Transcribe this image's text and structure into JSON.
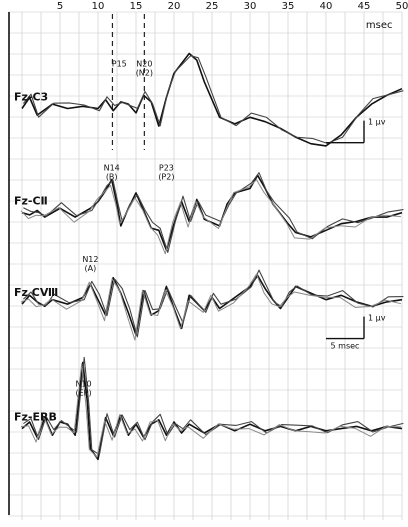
{
  "chart_data": {
    "type": "line",
    "title": "",
    "xlabel": "msec",
    "ylabel": "",
    "xlim": [
      0,
      50
    ],
    "x_ticks": [
      5,
      10,
      15,
      20,
      25,
      30,
      35,
      40,
      45,
      50
    ],
    "grid": true,
    "dashed_markers_ms": [
      11.9,
      16.1
    ],
    "traces": [
      {
        "name": "Fz-C3",
        "series_count": 2,
        "baseline": 0.19,
        "points_ms": [
          [
            0,
            0
          ],
          [
            1,
            0.5
          ],
          [
            2,
            -0.3
          ],
          [
            4,
            0.2
          ],
          [
            6,
            0
          ],
          [
            8,
            0.1
          ],
          [
            10,
            0
          ],
          [
            11,
            0.4
          ],
          [
            12,
            -0.1
          ],
          [
            13,
            0.3
          ],
          [
            14,
            0.2
          ],
          [
            15,
            -0.2
          ],
          [
            16,
            0.6
          ],
          [
            17,
            0.3
          ],
          [
            18,
            -0.8
          ],
          [
            19,
            0.5
          ],
          [
            20,
            1.6
          ],
          [
            22,
            2.5
          ],
          [
            23,
            2.2
          ],
          [
            24,
            1.2
          ],
          [
            26,
            -0.4
          ],
          [
            28,
            -0.7
          ],
          [
            30,
            -0.4
          ],
          [
            32,
            -0.6
          ],
          [
            34,
            -0.9
          ],
          [
            36,
            -1.3
          ],
          [
            38,
            -1.6
          ],
          [
            40,
            -1.7
          ],
          [
            42,
            -1.2
          ],
          [
            44,
            -0.4
          ],
          [
            46,
            0.2
          ],
          [
            48,
            0.6
          ],
          [
            50,
            0.9
          ]
        ]
      },
      {
        "name": "Fz-CⅡ",
        "series_count": 3,
        "baseline": 0.395,
        "points_ms": [
          [
            0,
            0
          ],
          [
            1,
            -0.1
          ],
          [
            2,
            0.1
          ],
          [
            3,
            -0.2
          ],
          [
            5,
            0.2
          ],
          [
            7,
            -0.2
          ],
          [
            9,
            0.2
          ],
          [
            10,
            0.5
          ],
          [
            11,
            1.0
          ],
          [
            11.8,
            1.5
          ],
          [
            12.5,
            0.4
          ],
          [
            13,
            -0.6
          ],
          [
            14,
            0.2
          ],
          [
            15,
            0.9
          ],
          [
            16,
            0.1
          ],
          [
            17,
            -0.7
          ],
          [
            18,
            -0.8
          ],
          [
            19,
            -1.7
          ],
          [
            20,
            -0.5
          ],
          [
            21,
            0.5
          ],
          [
            22,
            -0.4
          ],
          [
            23,
            0.6
          ],
          [
            24,
            -0.3
          ],
          [
            26,
            -0.6
          ],
          [
            27,
            0.4
          ],
          [
            28,
            0.9
          ],
          [
            30,
            1.1
          ],
          [
            31,
            1.7
          ],
          [
            32,
            1.1
          ],
          [
            33,
            0.4
          ],
          [
            35,
            -0.5
          ],
          [
            36,
            -0.9
          ],
          [
            38,
            -1.1
          ],
          [
            40,
            -0.8
          ],
          [
            42,
            -0.5
          ],
          [
            44,
            -0.4
          ],
          [
            46,
            -0.2
          ],
          [
            48,
            -0.2
          ],
          [
            50,
            0.0
          ]
        ]
      },
      {
        "name": "Fz CⅧ",
        "series_count": 3,
        "baseline": 0.575,
        "points_ms": [
          [
            0,
            0
          ],
          [
            1,
            0.4
          ],
          [
            2,
            0.1
          ],
          [
            3,
            -0.1
          ],
          [
            4,
            0.2
          ],
          [
            6,
            0
          ],
          [
            8,
            0.3
          ],
          [
            9,
            0.9
          ],
          [
            10,
            0.2
          ],
          [
            11,
            -0.5
          ],
          [
            12,
            1.2
          ],
          [
            13,
            0.5
          ],
          [
            14,
            -0.4
          ],
          [
            15,
            -1.4
          ],
          [
            16,
            0.6
          ],
          [
            17,
            -0.5
          ],
          [
            18,
            -0.3
          ],
          [
            19,
            0.8
          ],
          [
            20,
            -0.2
          ],
          [
            21,
            -1.1
          ],
          [
            22,
            0.4
          ],
          [
            24,
            -0.3
          ],
          [
            25,
            0.3
          ],
          [
            26,
            -0.2
          ],
          [
            28,
            0.3
          ],
          [
            30,
            0.8
          ],
          [
            31,
            1.3
          ],
          [
            32,
            0.7
          ],
          [
            33,
            0.2
          ],
          [
            34,
            -0.2
          ],
          [
            35,
            0.3
          ],
          [
            36,
            0.8
          ],
          [
            38,
            0.5
          ],
          [
            40,
            0.2
          ],
          [
            42,
            0.4
          ],
          [
            44,
            0.1
          ],
          [
            46,
            -0.1
          ],
          [
            48,
            0.1
          ],
          [
            50,
            0.2
          ]
        ]
      },
      {
        "name": "Fz-ERB",
        "series_count": 3,
        "baseline": 0.82,
        "points_ms": [
          [
            0,
            0
          ],
          [
            1,
            0.3
          ],
          [
            2,
            -0.4
          ],
          [
            3,
            0.5
          ],
          [
            4,
            -0.3
          ],
          [
            5,
            0.3
          ],
          [
            6,
            0.2
          ],
          [
            7,
            -0.3
          ],
          [
            8,
            3.0
          ],
          [
            8.6,
            1.2
          ],
          [
            9,
            -0.9
          ],
          [
            10,
            -1.4
          ],
          [
            11,
            0.5
          ],
          [
            12,
            -0.3
          ],
          [
            13,
            0.6
          ],
          [
            14,
            -0.3
          ],
          [
            15,
            0.2
          ],
          [
            16,
            -0.4
          ],
          [
            17,
            0.2
          ],
          [
            18,
            0.4
          ],
          [
            19,
            -0.3
          ],
          [
            20,
            0.3
          ],
          [
            21,
            -0.2
          ],
          [
            22,
            0.2
          ],
          [
            24,
            -0.2
          ],
          [
            26,
            0.2
          ],
          [
            28,
            -0.1
          ],
          [
            30,
            0.2
          ],
          [
            32,
            -0.1
          ],
          [
            34,
            0.1
          ],
          [
            36,
            -0.1
          ],
          [
            38,
            0.1
          ],
          [
            40,
            -0.1
          ],
          [
            42,
            0
          ],
          [
            44,
            0.1
          ],
          [
            46,
            -0.1
          ],
          [
            48,
            0.1
          ],
          [
            50,
            0
          ]
        ]
      }
    ],
    "peak_labels": [
      {
        "text": "N20\n(N2)",
        "ms": 16.1,
        "trace": 0
      },
      {
        "text": "P15",
        "ms": 12.8,
        "trace": 0
      },
      {
        "text": "N14\n(B)",
        "ms": 11.8,
        "trace": 1
      },
      {
        "text": "P23\n(P2)",
        "ms": 19,
        "trace": 1
      },
      {
        "text": "N12\n(A)",
        "ms": 9,
        "trace": 2
      },
      {
        "text": "N10\n(EP)",
        "ms": 8.1,
        "trace": 3
      }
    ],
    "calibrations": [
      {
        "amplitude": "1 μv",
        "time": "",
        "trace": 1
      },
      {
        "amplitude": "1 μv",
        "time": "5 msec",
        "trace": 3
      }
    ]
  }
}
